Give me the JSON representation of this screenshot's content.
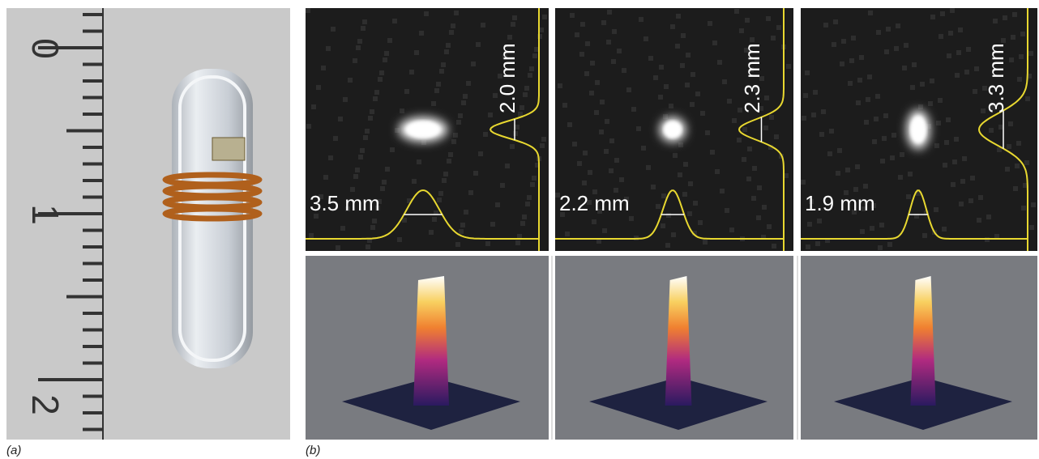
{
  "panel_a": {
    "label": "(a)",
    "ruler_labels": [
      "0",
      "1",
      "2"
    ]
  },
  "panel_b": {
    "label": "(b)",
    "images": [
      {
        "horizontal_width": "3.5 mm",
        "vertical_width": "2.0 mm"
      },
      {
        "horizontal_width": "2.2 mm",
        "vertical_width": "2.3 mm"
      },
      {
        "horizontal_width": "1.9 mm",
        "vertical_width": "3.3 mm"
      }
    ]
  }
}
